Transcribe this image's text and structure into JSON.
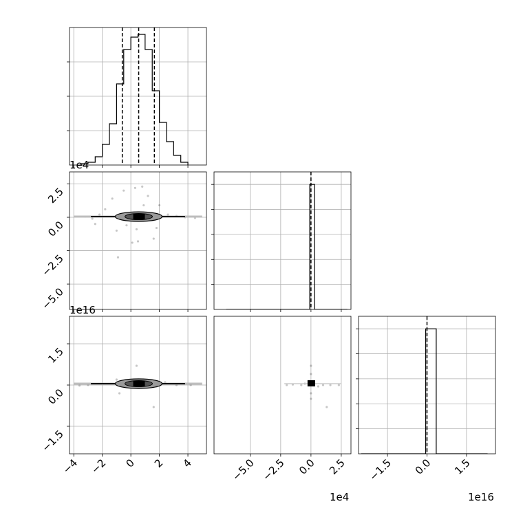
{
  "chart_data": [
    {
      "type": "histogram",
      "panel": "0-0",
      "bins": [
        -3.5,
        -3.0,
        -2.5,
        -2.0,
        -1.5,
        -1.0,
        -0.5,
        0.0,
        0.5,
        1.0,
        1.5,
        2.0,
        2.5,
        3.0,
        3.5,
        4.0
      ],
      "counts": [
        1,
        2,
        6,
        15,
        30,
        59,
        84,
        93,
        95,
        84,
        54,
        31,
        17,
        7,
        2
      ],
      "quantiles": [
        -0.6,
        0.55,
        1.65
      ],
      "xlim": [
        -4.3,
        5.3
      ],
      "ylim": [
        0,
        100
      ],
      "x_ticks": [
        -4,
        -2,
        0,
        2,
        4
      ],
      "y_ticks": [
        25,
        50,
        75
      ],
      "grid": true
    },
    {
      "type": "contour",
      "panel": "1-0",
      "xlim": [
        -4.3,
        5.3
      ],
      "ylim": [
        -6.9,
        3.4
      ],
      "x_ticks": [
        -4,
        -2,
        0,
        2,
        4
      ],
      "y_ticks": [
        2.5,
        0.0,
        -2.5,
        -5.0
      ],
      "y_tick_labels": [
        "2.5",
        "0.0",
        "−2.5",
        "−5.0"
      ],
      "offset_label": "1e4",
      "grid": true,
      "scatter": [
        [
          -3.2,
          0.05
        ],
        [
          -2.7,
          -0.1
        ],
        [
          -2.2,
          0.2
        ],
        [
          -1.8,
          0.6
        ],
        [
          -1.3,
          1.4
        ],
        [
          -0.5,
          2.0
        ],
        [
          0.3,
          2.2
        ],
        [
          0.8,
          2.3
        ],
        [
          1.2,
          1.6
        ],
        [
          2.0,
          0.9
        ],
        [
          2.6,
          0.2
        ],
        [
          3.2,
          0.1
        ],
        [
          -1.0,
          -1.0
        ],
        [
          0.1,
          -1.9
        ],
        [
          0.5,
          -1.8
        ],
        [
          1.6,
          -1.6
        ],
        [
          -0.9,
          -3.0
        ],
        [
          1.8,
          -0.8
        ],
        [
          -2.5,
          -0.5
        ],
        [
          3.8,
          0.0
        ],
        [
          4.5,
          -0.05
        ],
        [
          -0.3,
          -0.6
        ],
        [
          0.9,
          0.9
        ],
        [
          0.4,
          -0.9
        ]
      ]
    },
    {
      "type": "histogram",
      "panel": "1-1",
      "bins": [
        -7.0,
        -6.0,
        -5.0,
        -4.0,
        -3.0,
        -2.0,
        -1.0,
        -0.1,
        0.3,
        1.0,
        2.0,
        3.0
      ],
      "counts": [
        0,
        0,
        0,
        0,
        0,
        0,
        0,
        200,
        0,
        0,
        0
      ],
      "quantiles": [
        0.0
      ],
      "xlim": [
        -8.0,
        3.3
      ],
      "ylim": [
        0,
        220
      ],
      "x_ticks": [
        -5.0,
        -2.5,
        0.0,
        2.5
      ],
      "x_tick_labels": [
        "−5.0",
        "−2.5",
        "0.0",
        "2.5"
      ],
      "y_ticks": [
        40,
        80,
        120,
        160,
        200
      ],
      "offset_label": "1e4",
      "grid": true
    },
    {
      "type": "contour",
      "panel": "2-0",
      "xlim": [
        -4.3,
        5.3
      ],
      "ylim": [
        -2.5,
        2.5
      ],
      "x_ticks": [
        -4,
        -2,
        0,
        2,
        4
      ],
      "y_ticks": [
        1.5,
        0.0,
        -1.5
      ],
      "y_tick_labels": [
        "1.5",
        "0.0",
        "−1.5"
      ],
      "offset_label": "1e16",
      "grid": true,
      "scatter": [
        [
          -3.0,
          0.0
        ],
        [
          -2.0,
          0.05
        ],
        [
          -1.0,
          0.2
        ],
        [
          0.4,
          0.7
        ],
        [
          0.6,
          -0.1
        ],
        [
          1.8,
          -0.05
        ],
        [
          2.4,
          0.1
        ],
        [
          -0.8,
          -0.3
        ],
        [
          1.6,
          -0.8
        ],
        [
          3.2,
          0.0
        ],
        [
          4.2,
          0.0
        ],
        [
          -3.6,
          -0.02
        ]
      ]
    },
    {
      "type": "contour",
      "panel": "2-1",
      "xlim": [
        -8.0,
        3.3
      ],
      "ylim": [
        -2.5,
        2.5
      ],
      "x_ticks": [
        -5.0,
        -2.5,
        0.0,
        2.5
      ],
      "x_tick_labels": [
        "−5.0",
        "−2.5",
        "0.0",
        "2.5"
      ],
      "offset_label": "1e4",
      "grid": true,
      "scatter": [
        [
          -2.0,
          0.0
        ],
        [
          -1.5,
          0.02
        ],
        [
          -0.8,
          0.0
        ],
        [
          1.0,
          0.0
        ],
        [
          1.6,
          0.0
        ],
        [
          2.3,
          0.0
        ],
        [
          0.0,
          0.7
        ],
        [
          0.0,
          0.4
        ],
        [
          0.0,
          -0.3
        ],
        [
          0.0,
          -0.5
        ],
        [
          1.3,
          -0.8
        ],
        [
          -0.5,
          0.05
        ],
        [
          0.6,
          -0.05
        ]
      ]
    },
    {
      "type": "histogram",
      "panel": "2-2",
      "bins": [
        -2.5,
        -2.0,
        -1.5,
        -1.0,
        -0.5,
        -0.05,
        0.35,
        0.8,
        1.3,
        1.8,
        2.3
      ],
      "counts": [
        0,
        0,
        0,
        0,
        0,
        200,
        0,
        0,
        0,
        0
      ],
      "quantiles": [
        0.0
      ],
      "xlim": [
        -2.6,
        2.6
      ],
      "ylim": [
        0,
        220
      ],
      "x_ticks": [
        -1.5,
        0.0,
        1.5
      ],
      "x_tick_labels": [
        "−1.5",
        "0.0",
        "1.5"
      ],
      "y_ticks": [
        40,
        80,
        120,
        160,
        200
      ],
      "offset_label": "1e16",
      "grid": true
    }
  ],
  "labels": {
    "offset_row1": "1e4",
    "offset_row2": "1e16",
    "offset_col1": "1e4",
    "offset_col2": "1e16"
  }
}
